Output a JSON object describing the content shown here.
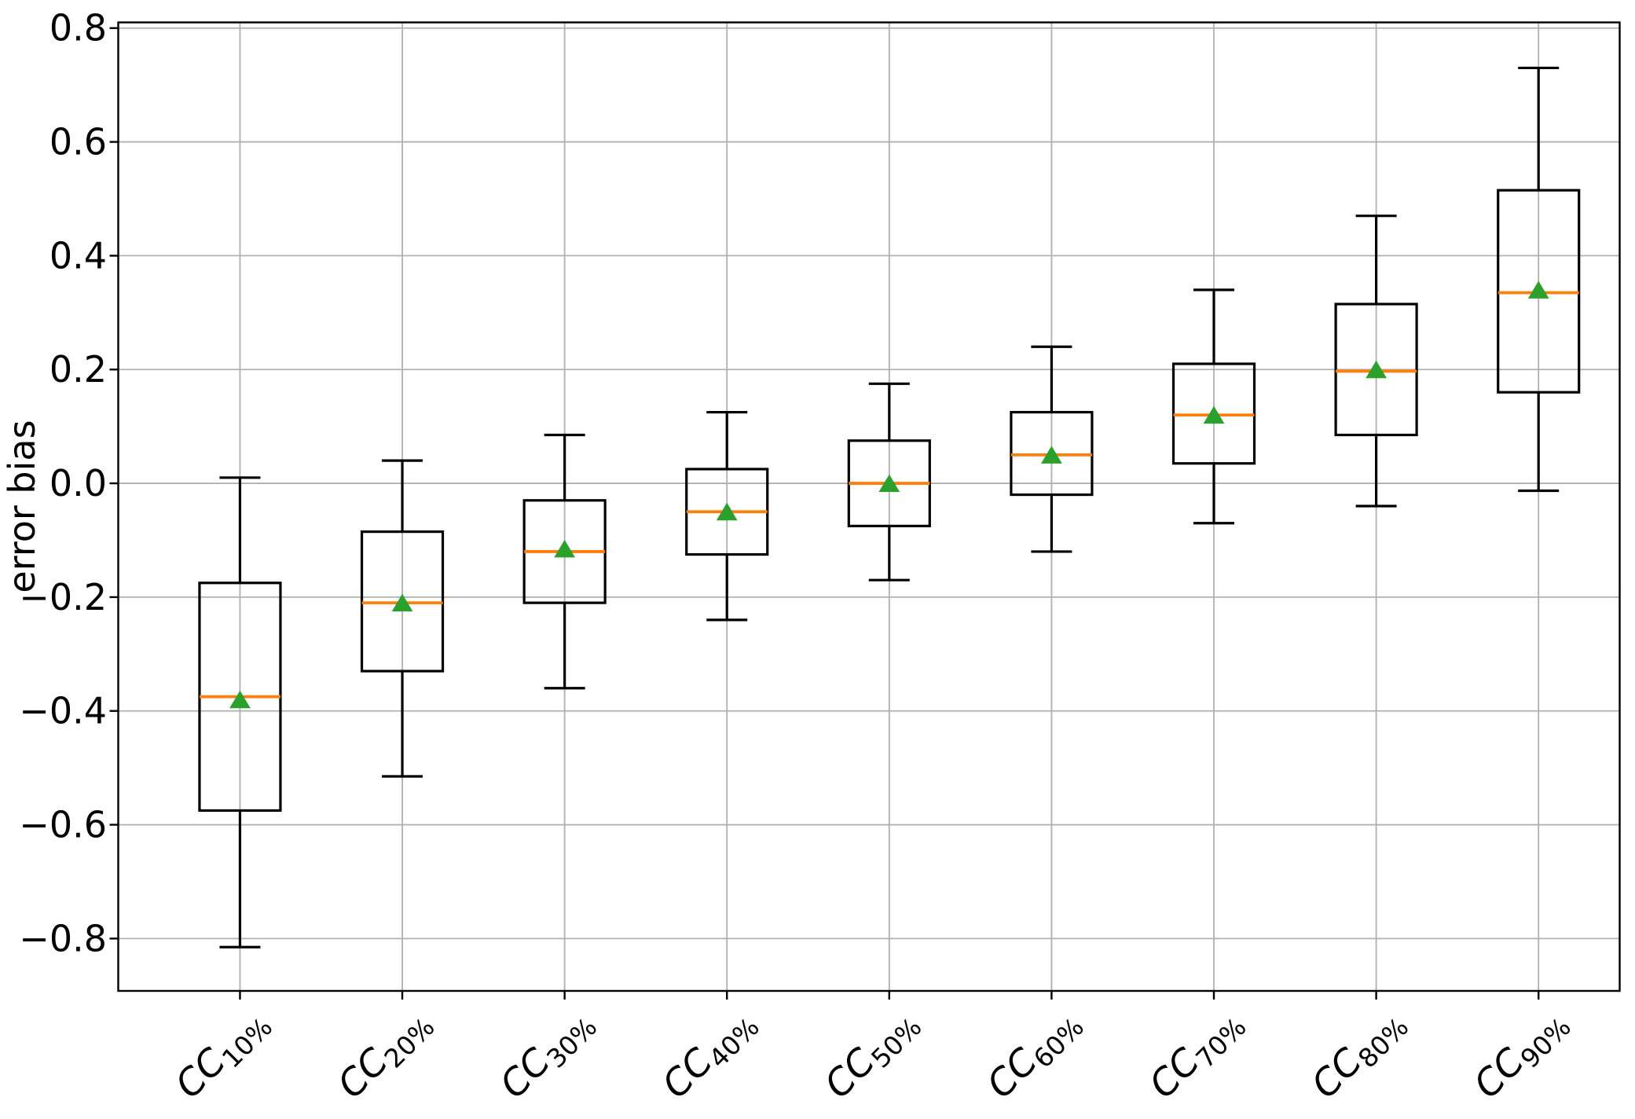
{
  "chart_data": {
    "type": "boxplot",
    "title": "",
    "xlabel": "",
    "ylabel": "error bias",
    "ylim": [
      -0.892,
      0.81
    ],
    "grid": true,
    "legend": null,
    "yticks": [
      {
        "value": 0.8,
        "label": "0.8"
      },
      {
        "value": 0.6,
        "label": "0.6"
      },
      {
        "value": 0.4,
        "label": "0.4"
      },
      {
        "value": 0.2,
        "label": "0.2"
      },
      {
        "value": 0.0,
        "label": "0.0"
      },
      {
        "value": -0.2,
        "label": "−0.2"
      },
      {
        "value": -0.4,
        "label": "−0.4"
      },
      {
        "value": -0.6,
        "label": "−0.6"
      },
      {
        "value": -0.8,
        "label": "−0.8"
      }
    ],
    "categories": [
      {
        "base": "CC",
        "sub": "10%",
        "label": "CC_10%"
      },
      {
        "base": "CC",
        "sub": "20%",
        "label": "CC_20%"
      },
      {
        "base": "CC",
        "sub": "30%",
        "label": "CC_30%"
      },
      {
        "base": "CC",
        "sub": "40%",
        "label": "CC_40%"
      },
      {
        "base": "CC",
        "sub": "50%",
        "label": "CC_50%"
      },
      {
        "base": "CC",
        "sub": "60%",
        "label": "CC_60%"
      },
      {
        "base": "CC",
        "sub": "70%",
        "label": "CC_70%"
      },
      {
        "base": "CC",
        "sub": "80%",
        "label": "CC_80%"
      },
      {
        "base": "CC",
        "sub": "90%",
        "label": "CC_90%"
      }
    ],
    "boxes": [
      {
        "whislo": -0.815,
        "q1": -0.575,
        "med": -0.375,
        "mean": -0.38,
        "q3": -0.175,
        "whishi": 0.01
      },
      {
        "whislo": -0.515,
        "q1": -0.33,
        "med": -0.21,
        "mean": -0.21,
        "q3": -0.085,
        "whishi": 0.04
      },
      {
        "whislo": -0.36,
        "q1": -0.21,
        "med": -0.12,
        "mean": -0.115,
        "q3": -0.03,
        "whishi": 0.085
      },
      {
        "whislo": -0.24,
        "q1": -0.125,
        "med": -0.05,
        "mean": -0.05,
        "q3": 0.025,
        "whishi": 0.125
      },
      {
        "whislo": -0.17,
        "q1": -0.075,
        "med": 0.0,
        "mean": 0.0,
        "q3": 0.075,
        "whishi": 0.175
      },
      {
        "whislo": -0.12,
        "q1": -0.02,
        "med": 0.05,
        "mean": 0.05,
        "q3": 0.125,
        "whishi": 0.24
      },
      {
        "whislo": -0.07,
        "q1": 0.035,
        "med": 0.12,
        "mean": 0.12,
        "q3": 0.21,
        "whishi": 0.34
      },
      {
        "whislo": -0.04,
        "q1": 0.085,
        "med": 0.197,
        "mean": 0.2,
        "q3": 0.315,
        "whishi": 0.47
      },
      {
        "whislo": -0.013,
        "q1": 0.16,
        "med": 0.335,
        "mean": 0.34,
        "q3": 0.515,
        "whishi": 0.73
      }
    ],
    "colors": {
      "box": "#000000",
      "whisker": "#000000",
      "median": "#ff7f0e",
      "mean_marker": "#2ca02c",
      "grid": "#b0b0b0",
      "spine": "#000000",
      "background": "#ffffff"
    },
    "marker_styles": {
      "mean": "triangle-up"
    }
  }
}
